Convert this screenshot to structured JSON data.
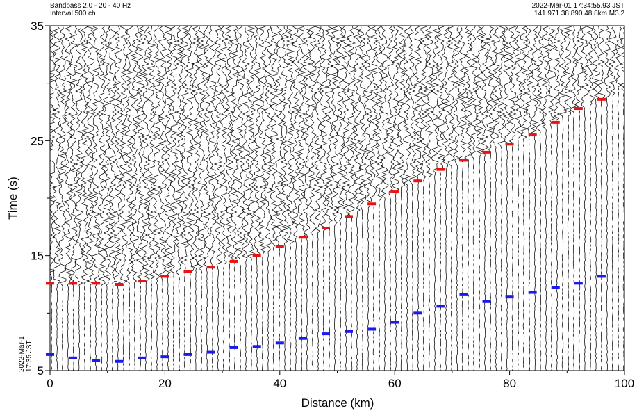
{
  "chart_data": {
    "type": "scatter",
    "header_left": [
      "Bandpass 2.0 - 20 - 40 Hz",
      "Interval 500 ch"
    ],
    "header_right": [
      "2022-Mar-01 17:34:55.93 JST",
      "141.971 38.890 48.8km M3.2"
    ],
    "corner_label": [
      "2022-Mar-1",
      "17:35 JST"
    ],
    "xlabel": "Distance (km)",
    "ylabel": "Time (s)",
    "xlim": [
      0,
      100
    ],
    "ylim": [
      5,
      35
    ],
    "xticks": [
      0,
      20,
      40,
      60,
      80,
      100
    ],
    "xticks_minor": [
      10,
      30,
      50,
      70,
      90
    ],
    "yticks": [
      5,
      15,
      25,
      35
    ],
    "yticks_minor": [
      10,
      20,
      30
    ],
    "x": [
      0,
      4,
      8,
      12,
      16,
      20,
      24,
      28,
      32,
      36,
      40,
      44,
      48,
      52,
      56,
      60,
      64,
      68,
      72,
      76,
      80,
      84,
      88,
      92,
      96
    ],
    "series": [
      {
        "color": "#ee1111",
        "values": [
          12.6,
          12.6,
          12.6,
          12.5,
          12.8,
          13.2,
          13.6,
          14.0,
          14.5,
          15.0,
          15.8,
          16.6,
          17.4,
          18.4,
          19.5,
          20.6,
          21.5,
          22.5,
          23.3,
          24.0,
          24.7,
          25.5,
          26.6,
          27.8,
          28.6
        ]
      },
      {
        "color": "#1a1aee",
        "values": [
          6.4,
          6.1,
          5.9,
          5.8,
          6.1,
          6.2,
          6.4,
          6.6,
          7.0,
          7.1,
          7.4,
          7.8,
          8.2,
          8.4,
          8.6,
          9.2,
          10.0,
          10.6,
          11.6,
          11.0,
          11.4,
          11.8,
          12.2,
          12.6,
          13.2
        ]
      }
    ]
  }
}
